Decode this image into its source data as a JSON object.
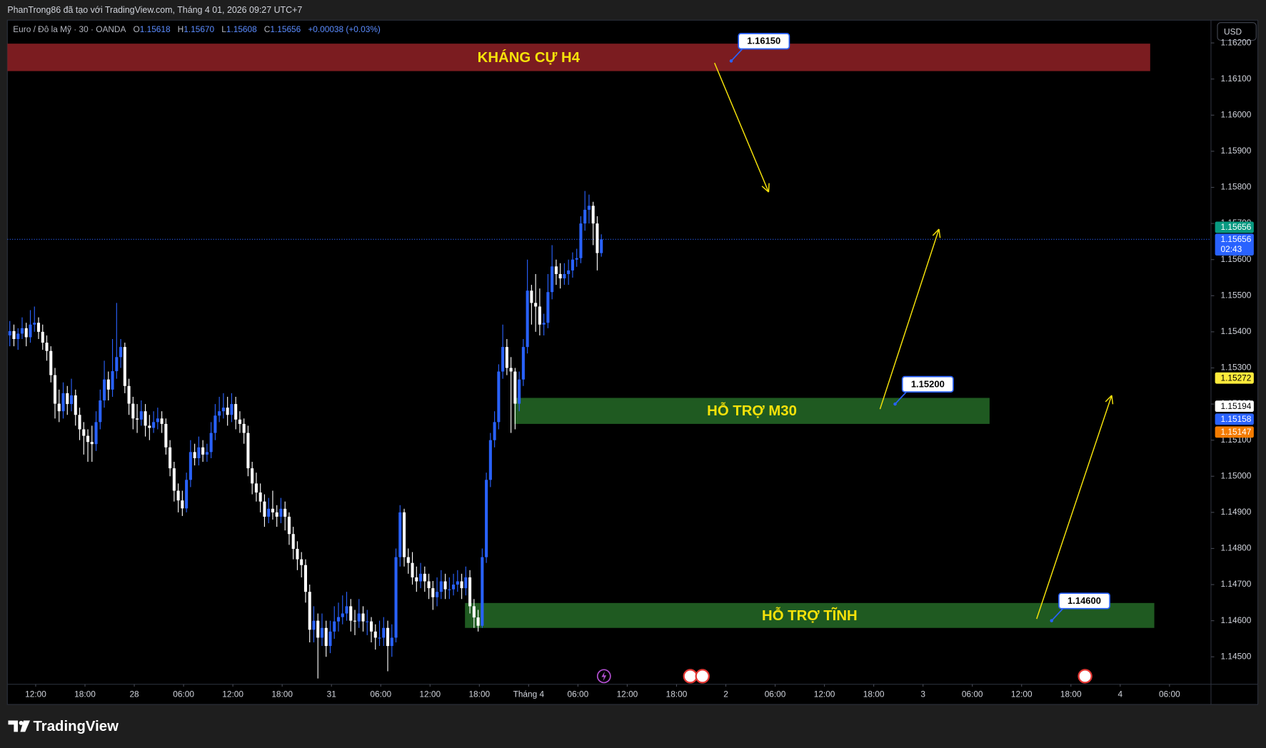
{
  "header": {
    "credit": "PhanTrong86 đã tạo với TradingView.com, Tháng 4 01, 2026 09:27 UTC+7"
  },
  "chart_data": {
    "type": "candlestick",
    "symbol": "Euro / Đô la Mỹ · 30 · OANDA",
    "readout": [
      {
        "key": "O",
        "value": "1.15618"
      },
      {
        "key": "H",
        "value": "1.15670"
      },
      {
        "key": "L",
        "value": "1.15608"
      },
      {
        "key": "C",
        "value": "1.15656"
      }
    ],
    "change": "+0.00038 (+0.03%)",
    "currency": "USD",
    "x": [
      0,
      1,
      2,
      3,
      4,
      5,
      6,
      7,
      8,
      9,
      10,
      11,
      12,
      13,
      14,
      15,
      16,
      17,
      18,
      19,
      20,
      21,
      22,
      23,
      24,
      25,
      26,
      27,
      28,
      29,
      30,
      31,
      32,
      33,
      34,
      35,
      36,
      37,
      38,
      39,
      40,
      41,
      42,
      43,
      44,
      45,
      46,
      47,
      48,
      49,
      50,
      51,
      52,
      53,
      54,
      55,
      56,
      57,
      58,
      59,
      60,
      61,
      62,
      63,
      64,
      65,
      66,
      67,
      68,
      69,
      70,
      71,
      72,
      73,
      74,
      75,
      76,
      77,
      78,
      79,
      80,
      81,
      82,
      83,
      84,
      85,
      86,
      87,
      88,
      89,
      90,
      91,
      92,
      93,
      94,
      95,
      96,
      97,
      98,
      99,
      100,
      101,
      102,
      103,
      104,
      105,
      106,
      107,
      108,
      109,
      110,
      111,
      112,
      113,
      114,
      115,
      116,
      117,
      118,
      119,
      120,
      121,
      122,
      123,
      124,
      125,
      126,
      127,
      128,
      129,
      130,
      131,
      132,
      133,
      134,
      135,
      136,
      137,
      138,
      139,
      140,
      141,
      142,
      143,
      144
    ],
    "open": [
      1.1539,
      1.15402,
      1.1538,
      1.15395,
      1.1541,
      1.15385,
      1.1542,
      1.15425,
      1.154,
      1.1537,
      1.15347,
      1.1528,
      1.15201,
      1.1518,
      1.1523,
      1.152,
      1.15224,
      1.1517,
      1.1513,
      1.15112,
      1.15095,
      1.15089,
      1.1515,
      1.1521,
      1.15268,
      1.1524,
      1.15291,
      1.1533,
      1.15358,
      1.1525,
      1.15201,
      1.1516,
      1.15157,
      1.1518,
      1.1514,
      1.15134,
      1.1515,
      1.1516,
      1.15145,
      1.1508,
      1.15022,
      1.1496,
      1.14933,
      1.14911,
      1.1499,
      1.15067,
      1.1505,
      1.1508,
      1.1506,
      1.15067,
      1.1512,
      1.15168,
      1.1518,
      1.1519,
      1.1517,
      1.152,
      1.15157,
      1.15145,
      1.1512,
      1.15022,
      1.1498,
      1.14955,
      1.1493,
      1.14888,
      1.1491,
      1.149,
      1.14888,
      1.1491,
      1.14888,
      1.1484,
      1.14799,
      1.1477,
      1.14754,
      1.1468,
      1.14575,
      1.146,
      1.14553,
      1.1458,
      1.1453,
      1.1457,
      1.14598,
      1.1461,
      1.1462,
      1.1464,
      1.146,
      1.14598,
      1.1462,
      1.14598,
      1.14598,
      1.1457,
      1.14553,
      1.14553,
      1.1458,
      1.1453,
      1.14553,
      1.14776,
      1.149,
      1.14776,
      1.1476,
      1.1472,
      1.14709,
      1.1473,
      1.14709,
      1.1469,
      1.14665,
      1.1468,
      1.14709,
      1.14687,
      1.14687,
      1.147,
      1.14709,
      1.1469,
      1.1472,
      1.1464,
      1.14609,
      1.14586,
      1.14776,
      1.1499,
      1.151,
      1.1515,
      1.1529,
      1.15358,
      1.153,
      1.1529,
      1.15201,
      1.15268,
      1.15358,
      1.15514,
      1.1548,
      1.1547,
      1.1542,
      1.15425,
      1.1551,
      1.15581,
      1.1556,
      1.15548,
      1.1556,
      1.1557,
      1.156,
      1.15604,
      1.157,
      1.15738,
      1.15749,
      1.157,
      1.15618
    ],
    "high": [
      1.1543,
      1.1542,
      1.1541,
      1.1544,
      1.15425,
      1.1546,
      1.1547,
      1.1544,
      1.1542,
      1.1539,
      1.1536,
      1.153,
      1.1524,
      1.1526,
      1.1525,
      1.1527,
      1.1524,
      1.1519,
      1.1515,
      1.1513,
      1.1514,
      1.1518,
      1.1524,
      1.1532,
      1.1529,
      1.1538,
      1.1548,
      1.1538,
      1.1537,
      1.1527,
      1.1522,
      1.152,
      1.1521,
      1.152,
      1.1517,
      1.1518,
      1.1519,
      1.1518,
      1.1516,
      1.151,
      1.1504,
      1.1498,
      1.1496,
      1.1501,
      1.151,
      1.1509,
      1.1511,
      1.151,
      1.1509,
      1.1515,
      1.152,
      1.1522,
      1.1523,
      1.1522,
      1.1523,
      1.1522,
      1.1518,
      1.1516,
      1.1514,
      1.1504,
      1.1501,
      1.1498,
      1.1495,
      1.1494,
      1.1496,
      1.1492,
      1.1494,
      1.1493,
      1.149,
      1.1486,
      1.1482,
      1.1479,
      1.1477,
      1.147,
      1.1464,
      1.1462,
      1.1462,
      1.146,
      1.146,
      1.1464,
      1.1465,
      1.1467,
      1.1468,
      1.1466,
      1.1463,
      1.1466,
      1.1464,
      1.1463,
      1.1461,
      1.1459,
      1.146,
      1.1461,
      1.146,
      1.1459,
      1.148,
      1.1492,
      1.1491,
      1.148,
      1.1479,
      1.1475,
      1.1476,
      1.1475,
      1.1473,
      1.1471,
      1.1472,
      1.1474,
      1.1473,
      1.1472,
      1.1473,
      1.1474,
      1.1473,
      1.1475,
      1.1474,
      1.1466,
      1.1463,
      1.148,
      1.1501,
      1.1512,
      1.1518,
      1.1531,
      1.1542,
      1.1538,
      1.1533,
      1.153,
      1.1529,
      1.1538,
      1.156,
      1.1553,
      1.1556,
      1.1552,
      1.1545,
      1.1556,
      1.1564,
      1.156,
      1.1559,
      1.1559,
      1.156,
      1.1562,
      1.1563,
      1.1572,
      1.1579,
      1.1578,
      1.1576,
      1.1572,
      1.1567
    ],
    "low": [
      1.1536,
      1.1536,
      1.1535,
      1.1538,
      1.1536,
      1.1537,
      1.154,
      1.1538,
      1.1535,
      1.1532,
      1.1526,
      1.1516,
      1.1515,
      1.1516,
      1.1517,
      1.1518,
      1.1514,
      1.151,
      1.1506,
      1.1504,
      1.1504,
      1.1507,
      1.1513,
      1.1519,
      1.1521,
      1.1522,
      1.1527,
      1.153,
      1.1523,
      1.1517,
      1.1513,
      1.1512,
      1.1514,
      1.1511,
      1.151,
      1.1512,
      1.1513,
      1.1512,
      1.1506,
      1.15,
      1.1493,
      1.149,
      1.1489,
      1.149,
      1.1497,
      1.1503,
      1.1503,
      1.1504,
      1.1504,
      1.1505,
      1.151,
      1.1515,
      1.1516,
      1.1514,
      1.1515,
      1.1513,
      1.1512,
      1.1509,
      1.15,
      1.1495,
      1.1493,
      1.149,
      1.1486,
      1.1487,
      1.1488,
      1.1486,
      1.1487,
      1.1485,
      1.1481,
      1.1477,
      1.1474,
      1.1472,
      1.1465,
      1.1454,
      1.1454,
      1.1444,
      1.1453,
      1.145,
      1.1451,
      1.1455,
      1.1457,
      1.1459,
      1.146,
      1.1457,
      1.1456,
      1.1458,
      1.1457,
      1.1456,
      1.1454,
      1.1452,
      1.1453,
      1.1453,
      1.1446,
      1.145,
      1.1454,
      1.1475,
      1.1475,
      1.1473,
      1.147,
      1.1468,
      1.1469,
      1.1468,
      1.1466,
      1.1463,
      1.1464,
      1.1466,
      1.1466,
      1.1466,
      1.1467,
      1.1468,
      1.1466,
      1.1467,
      1.1462,
      1.1458,
      1.1457,
      1.1458,
      1.1476,
      1.1497,
      1.1508,
      1.1513,
      1.1527,
      1.1528,
      1.1512,
      1.1513,
      1.1518,
      1.1525,
      1.1534,
      1.1542,
      1.154,
      1.1539,
      1.1539,
      1.1541,
      1.1549,
      1.1553,
      1.1552,
      1.1553,
      1.1553,
      1.1555,
      1.1558,
      1.1559,
      1.1568,
      1.157,
      1.1564,
      1.1557,
      1.15608
    ],
    "close": [
      1.15402,
      1.1538,
      1.15395,
      1.1541,
      1.15385,
      1.1542,
      1.15425,
      1.154,
      1.1537,
      1.15347,
      1.1528,
      1.15201,
      1.1518,
      1.1523,
      1.152,
      1.15224,
      1.1517,
      1.1513,
      1.15112,
      1.15095,
      1.15089,
      1.1515,
      1.1521,
      1.15268,
      1.1524,
      1.15291,
      1.1533,
      1.15358,
      1.1525,
      1.15201,
      1.1516,
      1.15157,
      1.1518,
      1.1514,
      1.15134,
      1.1515,
      1.1516,
      1.15145,
      1.1508,
      1.15022,
      1.1496,
      1.14933,
      1.14911,
      1.1499,
      1.15067,
      1.1505,
      1.1508,
      1.1506,
      1.15067,
      1.1512,
      1.15168,
      1.1518,
      1.1519,
      1.1517,
      1.152,
      1.15157,
      1.15145,
      1.1512,
      1.15022,
      1.1498,
      1.14955,
      1.1493,
      1.14888,
      1.1491,
      1.149,
      1.14888,
      1.1491,
      1.14888,
      1.1484,
      1.14799,
      1.1477,
      1.14754,
      1.1468,
      1.14575,
      1.146,
      1.14553,
      1.1458,
      1.1453,
      1.1457,
      1.14598,
      1.1461,
      1.1462,
      1.1464,
      1.146,
      1.14598,
      1.1462,
      1.14598,
      1.14598,
      1.1457,
      1.14553,
      1.14553,
      1.1458,
      1.1453,
      1.14553,
      1.14776,
      1.149,
      1.14776,
      1.1476,
      1.1472,
      1.14709,
      1.1473,
      1.14709,
      1.1469,
      1.14665,
      1.1468,
      1.14709,
      1.14687,
      1.14687,
      1.147,
      1.14709,
      1.1469,
      1.1472,
      1.1464,
      1.14609,
      1.14586,
      1.14776,
      1.1499,
      1.151,
      1.1515,
      1.1529,
      1.15358,
      1.153,
      1.1529,
      1.15201,
      1.15268,
      1.15358,
      1.15514,
      1.1548,
      1.1547,
      1.1542,
      1.15425,
      1.1551,
      1.15581,
      1.1556,
      1.15548,
      1.1556,
      1.1557,
      1.156,
      1.15604,
      1.157,
      1.15738,
      1.15749,
      1.157,
      1.15618,
      1.15656
    ],
    "up_color": "#2962ff",
    "down_color": "#ffffff",
    "xlim": [
      -0.59,
      292.4
    ],
    "xticks": [
      {
        "value": 6.3,
        "label": "12:00"
      },
      {
        "value": 18.3,
        "label": "18:00"
      },
      {
        "value": 30.3,
        "label": "28"
      },
      {
        "value": 42.3,
        "label": "06:00"
      },
      {
        "value": 54.3,
        "label": "12:00"
      },
      {
        "value": 66.3,
        "label": "18:00"
      },
      {
        "value": 78.3,
        "label": "31"
      },
      {
        "value": 90.3,
        "label": "06:00"
      },
      {
        "value": 102.3,
        "label": "12:00"
      },
      {
        "value": 114.3,
        "label": "18:00"
      },
      {
        "value": 126.3,
        "label": "Tháng 4"
      },
      {
        "value": 138.3,
        "label": "06:00"
      },
      {
        "value": 150.3,
        "label": "12:00"
      },
      {
        "value": 162.3,
        "label": "18:00"
      },
      {
        "value": 174.3,
        "label": "2"
      },
      {
        "value": 186.3,
        "label": "06:00"
      },
      {
        "value": 198.3,
        "label": "12:00"
      },
      {
        "value": 210.3,
        "label": "18:00"
      },
      {
        "value": 222.3,
        "label": "3"
      },
      {
        "value": 234.3,
        "label": "06:00"
      },
      {
        "value": 246.3,
        "label": "12:00"
      },
      {
        "value": 258.3,
        "label": "18:00"
      },
      {
        "value": 270.3,
        "label": "4"
      },
      {
        "value": 282.3,
        "label": "06:00"
      }
    ],
    "ylim": [
      1.14424,
      1.16263
    ],
    "yticks": [
      {
        "value": 1.145,
        "label": "1.14500"
      },
      {
        "value": 1.146,
        "label": "1.14600"
      },
      {
        "value": 1.147,
        "label": "1.14700"
      },
      {
        "value": 1.148,
        "label": "1.14800"
      },
      {
        "value": 1.149,
        "label": "1.14900"
      },
      {
        "value": 1.15,
        "label": "1.15000"
      },
      {
        "value": 1.151,
        "label": "1.15100"
      },
      {
        "value": 1.152,
        "label": "1.15200"
      },
      {
        "value": 1.153,
        "label": "1.15300"
      },
      {
        "value": 1.154,
        "label": "1.15400"
      },
      {
        "value": 1.155,
        "label": "1.15500"
      },
      {
        "value": 1.156,
        "label": "1.15600"
      },
      {
        "value": 1.157,
        "label": "1.15700"
      },
      {
        "value": 1.158,
        "label": "1.15800"
      },
      {
        "value": 1.159,
        "label": "1.15900"
      },
      {
        "value": 1.16,
        "label": "1.16000"
      },
      {
        "value": 1.161,
        "label": "1.16100"
      },
      {
        "value": 1.162,
        "label": "1.16200"
      }
    ],
    "grid": false,
    "zones": [
      {
        "label": "KHÁNG CỰ H4",
        "x": [
          -25,
          277.6
        ],
        "y": [
          1.16122,
          1.16198
        ],
        "color": "#7b1c20"
      },
      {
        "label": "HỖ TRỢ M30",
        "x": [
          122.8,
          238.5
        ],
        "y": [
          1.15145,
          1.15217
        ],
        "color": "#1f5a21"
      },
      {
        "label": "HỖ TRỢ TĨNH",
        "x": [
          110.8,
          278.6
        ],
        "y": [
          1.1458,
          1.14649
        ],
        "color": "#1f5a21"
      }
    ],
    "zone_text_color": "#f5e20a",
    "callouts": [
      {
        "value": 1.1615,
        "label": "1.16150",
        "x": 175.6
      },
      {
        "value": 1.152,
        "label": "1.15200",
        "x": 215.5
      },
      {
        "value": 1.146,
        "label": "1.14600",
        "x": 253.6
      }
    ],
    "price_labels": [
      {
        "value": 1.15656,
        "color": "#089981"
      },
      {
        "value": 1.15656,
        "color": "#2962ff",
        "countdown": "02:43"
      },
      {
        "value": 1.15272,
        "color": "#ffeb3b"
      },
      {
        "value": 1.15194,
        "color": "#ffffff"
      },
      {
        "value": 1.15158,
        "color": "#2962ff"
      },
      {
        "value": 1.15147,
        "color": "#f57c00"
      }
    ]
  },
  "footer": {
    "brand": "TradingView"
  }
}
